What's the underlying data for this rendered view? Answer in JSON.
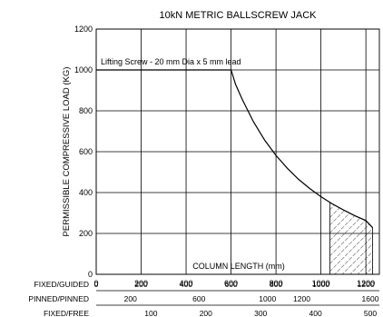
{
  "chart_data": {
    "type": "line",
    "title": "10kN METRIC BALLSCREW JACK",
    "ylabel": "PERMISSIBLE COMPRESSIVE LOAD (KG)",
    "xlabel": "COLUMN LENGTH (mm)",
    "annotation": "Lifting Screw - 20 mm Dia x 5 mm lead",
    "xlim": [
      0,
      1260
    ],
    "ylim": [
      0,
      1200
    ],
    "x_ticks": [
      0,
      200,
      400,
      600,
      800,
      1000,
      1200
    ],
    "y_ticks": [
      0,
      200,
      400,
      600,
      800,
      1000,
      1200
    ],
    "grid": true,
    "series": [
      {
        "x": [
          0,
          600,
          620,
          650,
          700,
          750,
          800,
          850,
          900,
          950,
          1000,
          1050,
          1100,
          1150,
          1200,
          1230
        ],
        "y": [
          1000,
          1000,
          930,
          855,
          746,
          656,
          582,
          519,
          465,
          420,
          380,
          345,
          315,
          287,
          263,
          228
        ]
      }
    ],
    "hatched_region": {
      "x_range": [
        1040,
        1230
      ]
    },
    "secondary_scales": [
      {
        "label": "FIXED/GUIDED",
        "ticks": [
          "0",
          "200",
          "400",
          "600",
          "800",
          "1000",
          "1200"
        ],
        "values": [
          0,
          200,
          400,
          600,
          800,
          1000,
          1200
        ]
      },
      {
        "label": "PINNED/PINNED",
        "ticks": [
          "200",
          "600",
          "1000",
          "1200",
          "1600"
        ],
        "values": [
          200,
          600,
          1000,
          1200,
          1600
        ]
      },
      {
        "label": "FIXED/FREE",
        "ticks": [
          "100",
          "200",
          "300",
          "400",
          "500"
        ],
        "values": [
          100,
          200,
          300,
          400,
          500
        ]
      }
    ]
  }
}
